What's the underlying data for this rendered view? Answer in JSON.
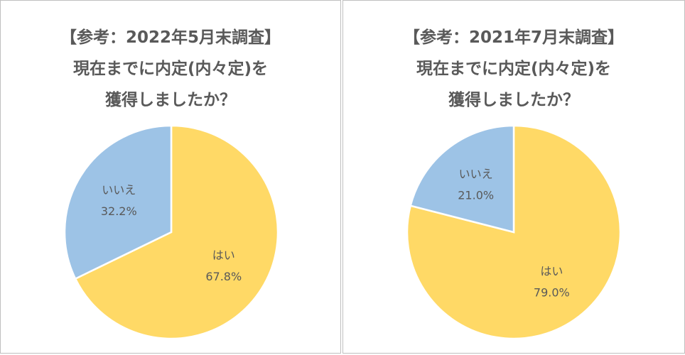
{
  "chart_data": [
    {
      "type": "pie",
      "title_lines": [
        "【参考：2022年5月末調査】",
        "現在までに内定(内々定)を",
        "獲得しましたか？"
      ],
      "categories": [
        "はい",
        "いいえ"
      ],
      "values": [
        67.8,
        32.2
      ],
      "value_labels": [
        "67.8%",
        "32.2%"
      ],
      "colors": [
        "#FFD966",
        "#9DC3E6"
      ]
    },
    {
      "type": "pie",
      "title_lines": [
        "【参考：2021年7月末調査】",
        "現在までに内定(内々定)を",
        "獲得しましたか？"
      ],
      "categories": [
        "はい",
        "いいえ"
      ],
      "values": [
        79.0,
        21.0
      ],
      "value_labels": [
        "79.0%",
        "21.0%"
      ],
      "colors": [
        "#FFD966",
        "#9DC3E6"
      ]
    }
  ]
}
